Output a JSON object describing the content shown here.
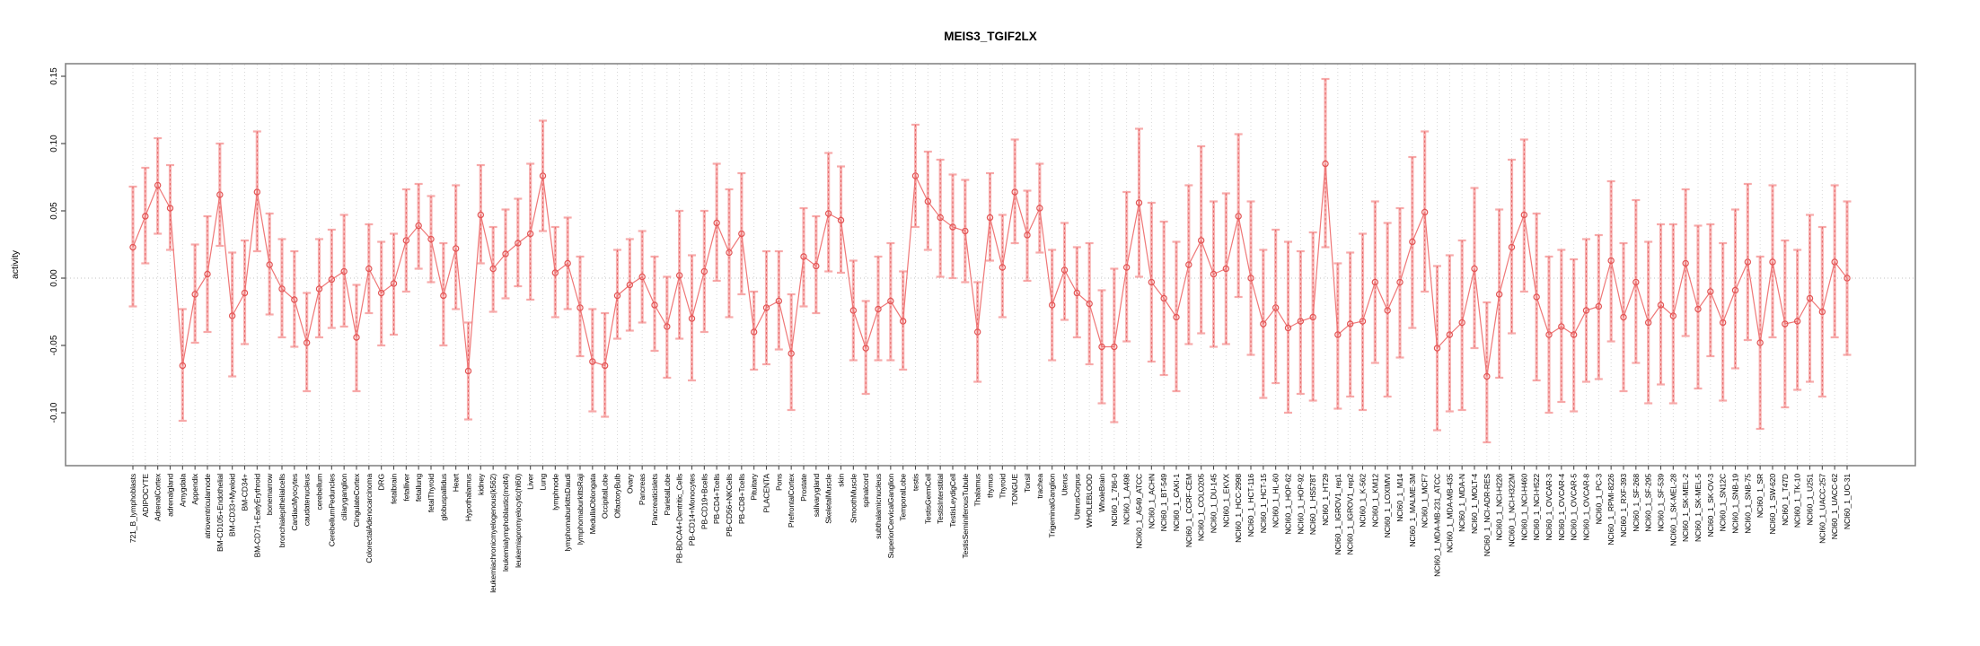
{
  "title": "MEIS3_TGIF2LX",
  "y_axis": {
    "label": "activity",
    "tick_labels": [
      "0.15",
      "0.10",
      "0.05",
      "0.00",
      "-0.05",
      "-0.10"
    ],
    "tick_values": [
      0.15,
      0.1,
      0.05,
      0.0,
      -0.05,
      -0.1
    ]
  },
  "chart_data": {
    "type": "line",
    "title": "MEIS3_TGIF2LX",
    "xlabel": "",
    "ylabel": "activity",
    "ylim": [
      -0.139,
      0.159
    ],
    "grid": "vertical dotted gridline per category; dotted horizontal line at y=0",
    "legend": "none",
    "marker": "open-circle",
    "error_bars": "thick light-pink bars with end caps and dashed red center line",
    "colors": {
      "line": "#ef7777",
      "point": "#e25555",
      "errorbar": "#f7a6a6",
      "grid": "#d4d4d4",
      "zero_line": "#c0c0c0",
      "frame": "#858585",
      "tick": "#4d4d4d"
    },
    "categories": [
      "721_B_lymphoblasts",
      "ADIPOCYTE",
      "AdrenalCortex",
      "adrenalgland",
      "Amygdala",
      "Appendix",
      "atrioventricularnode",
      "BM-CD105+Endothelial",
      "BM-CD33+Myeloid",
      "BM-CD34+",
      "BM-CD71+EarlyErythroid",
      "bonemarrow",
      "bronchialepithelialcells",
      "CardiacMyocytes",
      "caudatenucleus",
      "cerebellum",
      "CerebellumPeduncles",
      "ciliaryganglion",
      "CingulateCortex",
      "ColorectalAdenocarcinoma",
      "DRG",
      "fetalbrain",
      "fetalliver",
      "fetallung",
      "fetalThyroid",
      "globuspallidus",
      "Heart",
      "Hypothalamus",
      "kidney",
      "leukemiachronicmyelogenous(k562)",
      "leukemialymphoblastic(molt4)",
      "leukemiapromyelocytic(hl60)",
      "Liver",
      "Lung",
      "lymphnode",
      "lymphomaburkittsDaudi",
      "lymphomaburkittsRaji",
      "MedullaOblongata",
      "OccipitalLobe",
      "OlfactoryBulb",
      "Ovary",
      "Pancreas",
      "Pancreaticislets",
      "ParietalLobe",
      "PB-BDCA4+Dentritic_Cells",
      "PB-CD14+Monocytes",
      "PB-CD19+Bcells",
      "PB-CD4+Tcells",
      "PB-CD56+NKCells",
      "PB-CD8+Tcells",
      "Pituitary",
      "PLACENTA",
      "Pons",
      "PrefrontalCortex",
      "Prostate",
      "salivarygland",
      "SkeletalMuscle",
      "skin",
      "SmoothMuscle",
      "spinalcord",
      "subthalamicnucleus",
      "SuperiorCervicalGanglion",
      "TemporalLobe",
      "testis",
      "TestisGermCell",
      "TestisInterstitial",
      "TestisLeydigCell",
      "TestisSeminiferousTubule",
      "Thalamus",
      "thymus",
      "Thyroid",
      "TONGUE",
      "Tonsil",
      "trachea",
      "TrigeminalGanglion",
      "Uterus",
      "UterusCorpus",
      "WHOLEBLOOD",
      "WholeBrain",
      "NCI60_1_786-0",
      "NCI60_1_A498",
      "NCI60_1_A549_ATCC",
      "NCI60_1_ACHN",
      "NCI60_1_BT-549",
      "NCI60_1_CAKI-1",
      "NCI60_1_CCRF-CEM",
      "NCI60_1_COLO205",
      "NCI60_1_DU-145",
      "NCI60_1_EKVX",
      "NCI60_1_HCC-2998",
      "NCI60_1_HCT-116",
      "NCI60_1_HCT-15",
      "NCI60_1_HL-60",
      "NCI60_1_HOP-62",
      "NCI60_1_HOP-92",
      "NCI60_1_HS578T",
      "NCI60_1_HT29",
      "NCI60_1_IGROV1_rep1",
      "NCI60_1_IGROV1_rep2",
      "NCI60_1_K-562",
      "NCI60_1_KM12",
      "NCI60_1_LOXIMVI",
      "NCI60_1_M14",
      "NCI60_1_MALME-3M",
      "NCI60_1_MCF7",
      "NCI60_1_MDA-MB-231_ATCC",
      "NCI60_1_MDA-MB-435",
      "NCI60_1_MDA-N",
      "NCI60_1_MOLT-4",
      "NCI60_1_NCI-ADR-RES",
      "NCI60_1_NCI-H226",
      "NCI60_1_NCI-H322M",
      "NCI60_1_NCI-H460",
      "NCI60_1_NCI-H522",
      "NCI60_1_OVCAR-3",
      "NCI60_1_OVCAR-4",
      "NCI60_1_OVCAR-5",
      "NCI60_1_OVCAR-8",
      "NCI60_1_PC-3",
      "NCI60_1_RPMI-8226",
      "NCI60_1_RXF-393",
      "NCI60_1_SF-268",
      "NCI60_1_SF-295",
      "NCI60_1_SF-539",
      "NCI60_1_SK-MEL-28",
      "NCI60_1_SK-MEL-2",
      "NCI60_1_SK-MEL-5",
      "NCI60_1_SK-OV-3",
      "NCI60_1_SN12C",
      "NCI60_1_SNB-19",
      "NCI60_1_SNB-75",
      "NCI60_1_SR",
      "NCI60_1_SW-620",
      "NCI60_1_T47D",
      "NCI60_1_TK-10",
      "NCI60_1_U251",
      "NCI60_1_UACC-257",
      "NCI60_1_UACC-62",
      "NCI60_1_UO-31"
    ],
    "series": [
      {
        "name": "activity",
        "values": [
          0.023,
          0.046,
          0.069,
          0.052,
          -0.065,
          -0.012,
          0.003,
          0.062,
          -0.028,
          -0.011,
          0.064,
          0.01,
          -0.008,
          -0.016,
          -0.048,
          -0.008,
          -0.001,
          0.005,
          -0.044,
          0.007,
          -0.011,
          -0.004,
          0.028,
          0.039,
          0.029,
          -0.013,
          0.022,
          -0.069,
          0.047,
          0.007,
          0.018,
          0.026,
          0.033,
          0.076,
          0.004,
          0.011,
          -0.022,
          -0.062,
          -0.065,
          -0.013,
          -0.005,
          0.001,
          -0.02,
          -0.036,
          0.002,
          -0.03,
          0.005,
          0.041,
          0.019,
          0.033,
          -0.04,
          -0.022,
          -0.017,
          -0.056,
          0.016,
          0.009,
          0.048,
          0.043,
          -0.024,
          -0.052,
          -0.023,
          -0.017,
          -0.032,
          0.076,
          0.057,
          0.045,
          0.038,
          0.035,
          -0.04,
          0.045,
          0.008,
          0.064,
          0.032,
          0.052,
          -0.02,
          0.006,
          -0.011,
          -0.019,
          -0.051,
          -0.051,
          0.008,
          0.056,
          -0.003,
          -0.015,
          -0.029,
          0.01,
          0.028,
          0.003,
          0.007,
          0.046,
          0.0,
          -0.034,
          -0.022,
          -0.037,
          -0.032,
          -0.029,
          0.085,
          -0.042,
          -0.034,
          -0.032,
          -0.003,
          -0.024,
          -0.003,
          0.027,
          0.049,
          -0.052,
          -0.042,
          -0.033,
          0.007,
          -0.073,
          -0.012,
          0.023,
          0.047,
          -0.014,
          -0.042,
          -0.036,
          -0.042,
          -0.024,
          -0.021,
          0.013,
          -0.029,
          -0.003,
          -0.033,
          -0.02,
          -0.028,
          0.011,
          -0.023,
          -0.01,
          -0.033,
          -0.009,
          0.012,
          -0.048,
          0.012,
          -0.034,
          -0.032,
          -0.015,
          -0.025,
          0.012,
          0.0
        ],
        "error_low": [
          -0.021,
          0.011,
          0.033,
          0.021,
          -0.106,
          -0.048,
          -0.04,
          0.024,
          -0.073,
          -0.049,
          0.02,
          -0.027,
          -0.044,
          -0.051,
          -0.084,
          -0.044,
          -0.037,
          -0.036,
          -0.084,
          -0.026,
          -0.05,
          -0.042,
          -0.01,
          0.007,
          -0.003,
          -0.05,
          -0.023,
          -0.105,
          0.011,
          -0.025,
          -0.015,
          -0.006,
          -0.016,
          0.035,
          -0.029,
          -0.023,
          -0.058,
          -0.099,
          -0.103,
          -0.045,
          -0.039,
          -0.033,
          -0.054,
          -0.074,
          -0.045,
          -0.076,
          -0.04,
          -0.002,
          -0.029,
          -0.012,
          -0.068,
          -0.064,
          -0.053,
          -0.098,
          -0.021,
          -0.026,
          0.005,
          0.004,
          -0.061,
          -0.086,
          -0.061,
          -0.061,
          -0.068,
          0.038,
          0.021,
          0.001,
          0.0,
          -0.003,
          -0.077,
          0.013,
          -0.029,
          0.026,
          -0.002,
          0.019,
          -0.061,
          -0.031,
          -0.044,
          -0.064,
          -0.093,
          -0.107,
          -0.047,
          0.001,
          -0.062,
          -0.072,
          -0.084,
          -0.049,
          -0.041,
          -0.051,
          -0.049,
          -0.014,
          -0.057,
          -0.089,
          -0.078,
          -0.1,
          -0.086,
          -0.091,
          0.023,
          -0.097,
          -0.088,
          -0.098,
          -0.063,
          -0.088,
          -0.059,
          -0.037,
          -0.01,
          -0.113,
          -0.099,
          -0.098,
          -0.052,
          -0.122,
          -0.074,
          -0.041,
          -0.01,
          -0.076,
          -0.1,
          -0.092,
          -0.099,
          -0.077,
          -0.075,
          -0.047,
          -0.084,
          -0.063,
          -0.093,
          -0.079,
          -0.093,
          -0.043,
          -0.082,
          -0.058,
          -0.091,
          -0.067,
          -0.046,
          -0.112,
          -0.044,
          -0.096,
          -0.083,
          -0.077,
          -0.088,
          -0.044,
          -0.057
        ],
        "error_high": [
          0.068,
          0.082,
          0.104,
          0.084,
          -0.023,
          0.025,
          0.046,
          0.1,
          0.019,
          0.028,
          0.109,
          0.048,
          0.029,
          0.02,
          -0.011,
          0.029,
          0.036,
          0.047,
          -0.005,
          0.04,
          0.027,
          0.033,
          0.066,
          0.07,
          0.061,
          0.026,
          0.069,
          -0.033,
          0.084,
          0.038,
          0.051,
          0.059,
          0.085,
          0.117,
          0.038,
          0.045,
          0.016,
          -0.023,
          -0.026,
          0.021,
          0.029,
          0.035,
          0.016,
          0.001,
          0.05,
          0.017,
          0.05,
          0.085,
          0.066,
          0.078,
          -0.01,
          0.02,
          0.02,
          -0.012,
          0.052,
          0.046,
          0.093,
          0.083,
          0.013,
          -0.017,
          0.016,
          0.026,
          0.005,
          0.114,
          0.094,
          0.088,
          0.077,
          0.073,
          -0.003,
          0.078,
          0.047,
          0.103,
          0.065,
          0.085,
          0.021,
          0.041,
          0.023,
          0.026,
          -0.009,
          0.007,
          0.064,
          0.111,
          0.056,
          0.042,
          0.027,
          0.069,
          0.098,
          0.057,
          0.063,
          0.107,
          0.057,
          0.021,
          0.036,
          0.027,
          0.02,
          0.034,
          0.148,
          0.011,
          0.019,
          0.033,
          0.057,
          0.041,
          0.052,
          0.09,
          0.109,
          0.009,
          0.017,
          0.028,
          0.067,
          -0.018,
          0.051,
          0.088,
          0.103,
          0.048,
          0.016,
          0.021,
          0.014,
          0.029,
          0.032,
          0.072,
          0.026,
          0.058,
          0.027,
          0.04,
          0.04,
          0.066,
          0.039,
          0.04,
          0.026,
          0.051,
          0.07,
          0.016,
          0.069,
          0.028,
          0.021,
          0.047,
          0.038,
          0.069,
          0.057
        ]
      }
    ]
  }
}
